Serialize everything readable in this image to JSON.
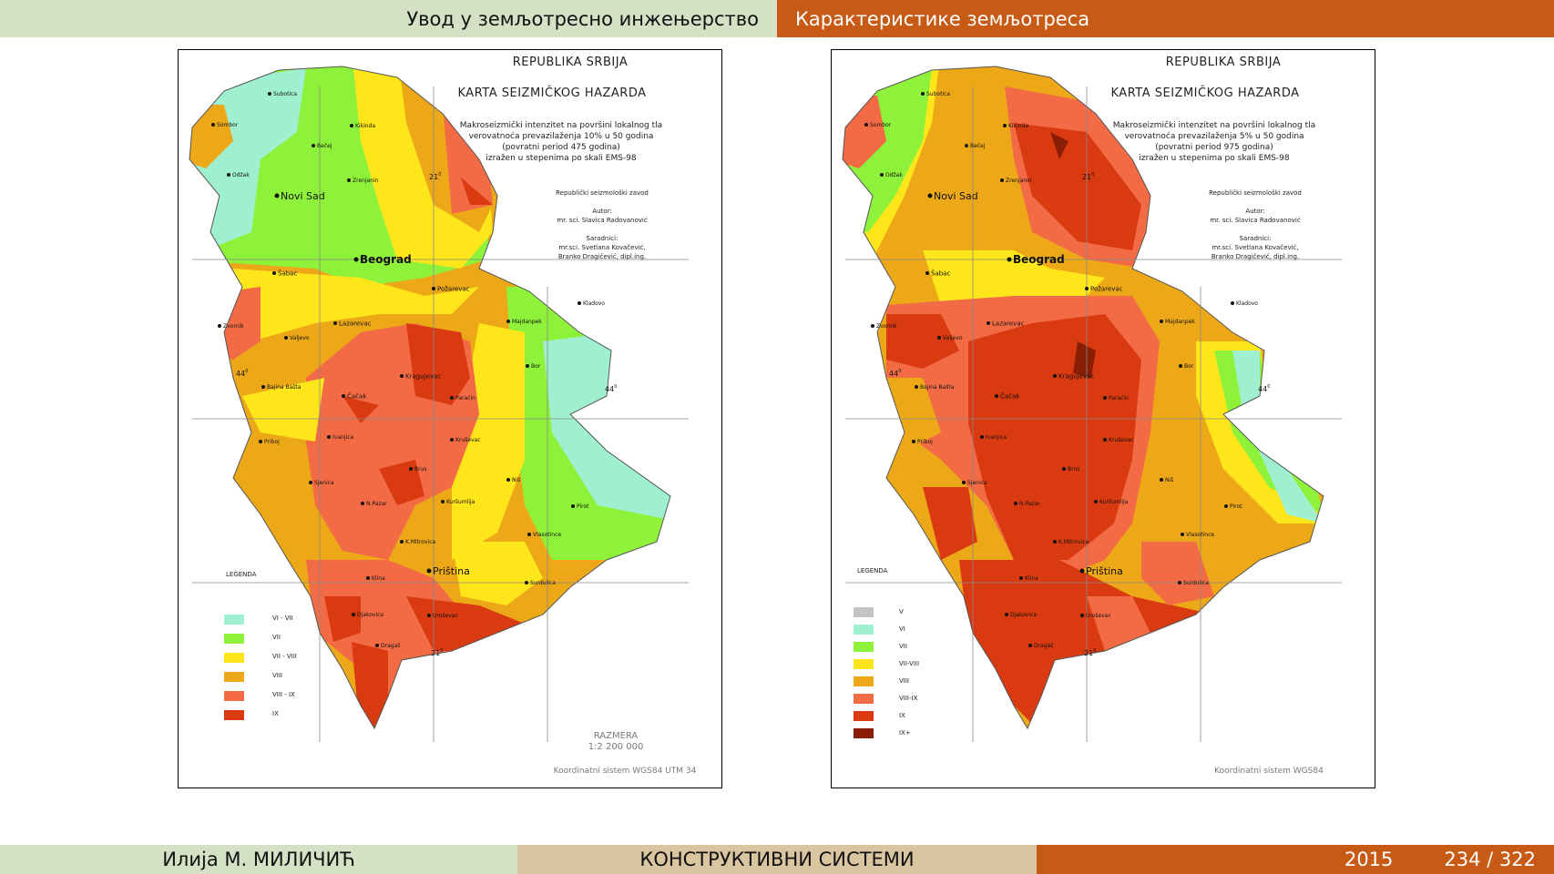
{
  "header": {
    "left_title": "Увод у земљотресно инжењерство",
    "right_title": "Карактеристике земљотреса"
  },
  "map_left": {
    "country": "REPUBLIKA SRBIJA",
    "title": "KARTA SEIZMIČKOG HAZARDA",
    "desc_1": "Makroseizmički intenzitet na površini lokalnog tla",
    "desc_2": "verovatnoća prevazilaženja 10% u 50 godina",
    "desc_3": "(povratni period 475 godina)",
    "desc_4": "izražen u stepenima  po skali EMS-98",
    "institute": "Republički seizmološki zavod",
    "author_label": "Autor:",
    "author": "mr. sci. Slavica Radovanović",
    "coauthors_label": "Saradnici:",
    "coauthor_1": "mr.sci. Svetlana Kovačević,",
    "coauthor_2": "Branko Dragičević, dipl.ing.",
    "legend_title": "LEGENDA",
    "legend": [
      "VI - VII",
      "VII",
      "VII - VIII",
      "VIII",
      "VIII - IX",
      "IX"
    ],
    "scale_label": "RAZMERA",
    "scale": "1:2 200 000",
    "coords": "Koordinatni sistem WGS84 UTM 34"
  },
  "map_right": {
    "country": "REPUBLIKA SRBIJA",
    "title": "KARTA SEIZMIČKOG HAZARDA",
    "desc_1": "Makroseizmički intenzitet na površini lokalnog tla",
    "desc_2": "verovatnoća prevazilaženja 5% u 50 godina",
    "desc_3": "(povratni period 975 godina)",
    "desc_4": "izražen u stepenima  po skali EMS-98",
    "institute": "Republički seizmološki zavod",
    "author_label": "Autor:",
    "author": "mr. sci. Slavica Radovanović",
    "coauthors_label": "Saradnici:",
    "coauthor_1": "mr.sci. Svetlana Kovačević,",
    "coauthor_2": "Branko Dragičević, dipl.ing.",
    "legend_title": "LEGENDA",
    "legend": [
      "V",
      "VI",
      "VII",
      "VII-VIII",
      "VIII",
      "VIII-IX",
      "IX",
      "IX+"
    ],
    "coords": "Koordinatni sistem WGS84"
  },
  "cities": {
    "subotica": "Subotica",
    "sombor": "Sombor",
    "kikinda": "Kikinda",
    "becej": "Bečej",
    "odzak": "Odžak",
    "zrenjanin": "Zrenjanin",
    "novi_sad": "Novi Sad",
    "beograd": "Beograd",
    "sabac": "Šabac",
    "pozarevac": "Požarevac",
    "kladovo": "Kladovo",
    "majdanpek": "Majdanpek",
    "zvornik": "Zvornik",
    "lazarevac": "Lazarevac",
    "valjevo": "Valjevo",
    "bor": "Bor",
    "kragujevac": "Kragujevac",
    "bajina_basta": "Bajina Bašta",
    "cacak": "Čačak",
    "paracin": "Paraćin",
    "ivanjica": "Ivanjica",
    "priboj": "Priboj",
    "krusevac": "Kruševac",
    "brus": "Brus",
    "nis": "Niš",
    "sjenica": "Sjenica",
    "n_pazar": "N.Pazar",
    "kursumlija": "Kuršumlija",
    "pirot": "Pirot",
    "vlasotince": "Vlasotince",
    "k_mitrovica": "K.Mitrovica",
    "klina": "Klina",
    "pristina": "Priština",
    "surdulica": "Surdulica",
    "djakovica": "Djakovica",
    "urosevac": "Uroševac",
    "dragas": "Dragaš"
  },
  "graticule": {
    "lat": "44",
    "lon": "21",
    "deg": "0"
  },
  "footer": {
    "author": "Илија М. МИЛИЧИЋ",
    "course": "КОНСТРУКТИВНИ СИСТЕМИ",
    "year": "2015",
    "page": "234 / 322"
  },
  "colors": {
    "vi_vii": "#9ff0d0",
    "vii": "#8ef23a",
    "vii_viii": "#ffe61a",
    "viii": "#eda818",
    "viii_ix": "#f36b45",
    "ix": "#da3a10",
    "ix_plus": "#8a1e05",
    "v": "#c3c3c3",
    "header_green": "#d4e1c4",
    "header_orange": "#c75a14"
  }
}
